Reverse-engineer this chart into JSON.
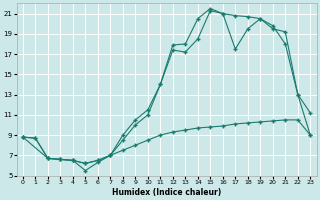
{
  "xlabel": "Humidex (Indice chaleur)",
  "bg_color": "#cce8e8",
  "grid_color": "#ffffff",
  "line_color": "#1a7a6e",
  "xlim": [
    -0.5,
    23.5
  ],
  "ylim": [
    5,
    22
  ],
  "xticks": [
    0,
    1,
    2,
    3,
    4,
    5,
    6,
    7,
    8,
    9,
    10,
    11,
    12,
    13,
    14,
    15,
    16,
    17,
    18,
    19,
    20,
    21,
    22,
    23
  ],
  "yticks": [
    5,
    7,
    9,
    11,
    13,
    15,
    17,
    19,
    21
  ],
  "line1_x": [
    0,
    1,
    2,
    3,
    4,
    5,
    6,
    7,
    8,
    9,
    10,
    11,
    12,
    13,
    14,
    15,
    16,
    17,
    18,
    19,
    20,
    21,
    22,
    23
  ],
  "line1_y": [
    8.8,
    8.7,
    6.7,
    6.6,
    6.5,
    6.2,
    6.5,
    7.0,
    7.5,
    8.0,
    8.5,
    9.0,
    9.3,
    9.5,
    9.7,
    9.8,
    9.9,
    10.1,
    10.2,
    10.3,
    10.4,
    10.5,
    10.5,
    9.0
  ],
  "line2_x": [
    0,
    1,
    2,
    3,
    4,
    5,
    6,
    7,
    8,
    9,
    10,
    11,
    12,
    13,
    14,
    15,
    16,
    17,
    18,
    19,
    20,
    21,
    22,
    23
  ],
  "line2_y": [
    8.8,
    8.7,
    6.7,
    6.6,
    6.5,
    5.5,
    6.3,
    7.0,
    9.0,
    10.5,
    11.5,
    14.0,
    17.4,
    17.2,
    18.5,
    21.3,
    21.0,
    17.5,
    19.5,
    20.5,
    19.5,
    19.2,
    13.0,
    9.0
  ],
  "line3_x": [
    0,
    2,
    3,
    4,
    5,
    6,
    7,
    8,
    9,
    10,
    11,
    12,
    13,
    14,
    15,
    16,
    17,
    18,
    19,
    20,
    21,
    22,
    23
  ],
  "line3_y": [
    8.8,
    6.7,
    6.6,
    6.5,
    6.2,
    6.5,
    7.0,
    8.5,
    10.0,
    11.0,
    14.0,
    17.9,
    18.0,
    20.5,
    21.5,
    21.0,
    20.8,
    20.7,
    20.5,
    19.8,
    18.0,
    13.0,
    11.2
  ]
}
